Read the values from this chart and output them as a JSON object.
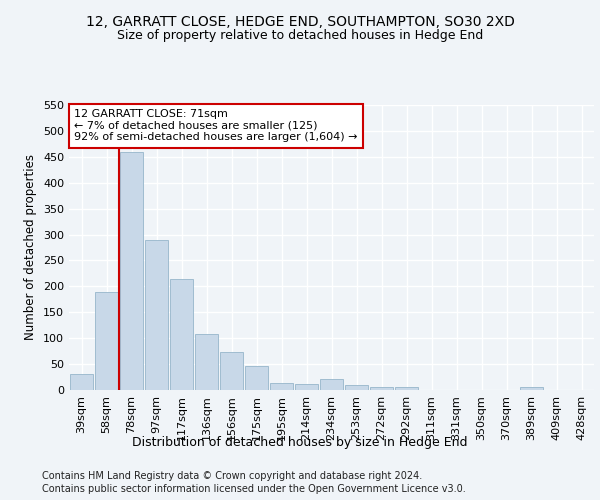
{
  "title1": "12, GARRATT CLOSE, HEDGE END, SOUTHAMPTON, SO30 2XD",
  "title2": "Size of property relative to detached houses in Hedge End",
  "xlabel": "Distribution of detached houses by size in Hedge End",
  "ylabel": "Number of detached properties",
  "categories": [
    "39sqm",
    "58sqm",
    "78sqm",
    "97sqm",
    "117sqm",
    "136sqm",
    "156sqm",
    "175sqm",
    "195sqm",
    "214sqm",
    "234sqm",
    "253sqm",
    "272sqm",
    "292sqm",
    "311sqm",
    "331sqm",
    "350sqm",
    "370sqm",
    "389sqm",
    "409sqm",
    "428sqm"
  ],
  "values": [
    30,
    190,
    460,
    290,
    215,
    108,
    74,
    46,
    13,
    12,
    21,
    9,
    5,
    5,
    0,
    0,
    0,
    0,
    5,
    0,
    0
  ],
  "bar_color": "#c8d8e8",
  "bar_edge_color": "#a0bcd0",
  "red_line_x": 1.5,
  "annotation_text": "12 GARRATT CLOSE: 71sqm\n← 7% of detached houses are smaller (125)\n92% of semi-detached houses are larger (1,604) →",
  "annotation_box_color": "#ffffff",
  "annotation_edge_color": "#cc0000",
  "ylim": [
    0,
    550
  ],
  "yticks": [
    0,
    50,
    100,
    150,
    200,
    250,
    300,
    350,
    400,
    450,
    500,
    550
  ],
  "footer1": "Contains HM Land Registry data © Crown copyright and database right 2024.",
  "footer2": "Contains public sector information licensed under the Open Government Licence v3.0.",
  "bg_color": "#f0f4f8",
  "plot_bg_color": "#f0f4f8",
  "grid_color": "#ffffff",
  "title1_fontsize": 10,
  "title2_fontsize": 9,
  "xlabel_fontsize": 9,
  "ylabel_fontsize": 8.5,
  "tick_fontsize": 8,
  "footer_fontsize": 7
}
